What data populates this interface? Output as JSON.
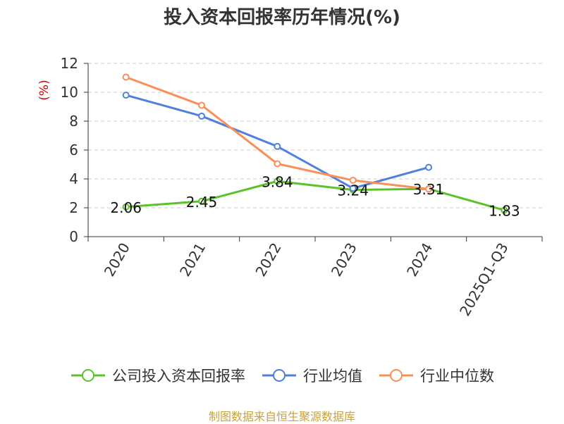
{
  "chart_data": {
    "type": "line",
    "title": "投入资本回报率历年情况(%)",
    "ylabel": "(%)",
    "xlabel": "",
    "categories": [
      "2020",
      "2021",
      "2022",
      "2023",
      "2024",
      "2025Q1-Q3"
    ],
    "ylim": [
      0,
      12
    ],
    "yticks": [
      0,
      2,
      4,
      6,
      8,
      10,
      12
    ],
    "grid": true,
    "legend_position": "bottom",
    "series": [
      {
        "name": "公司投入资本回报率",
        "color": "#5cc22a",
        "values": [
          2.06,
          2.45,
          3.84,
          3.24,
          3.31,
          1.83
        ],
        "labels": [
          "2.06",
          "2.45",
          "3.84",
          "3.24",
          "3.31",
          "1.83"
        ]
      },
      {
        "name": "行业均值",
        "color": "#4e80dc",
        "values": [
          9.8,
          8.35,
          6.25,
          3.35,
          4.8,
          null
        ]
      },
      {
        "name": "行业中位数",
        "color": "#fa8f58",
        "values": [
          11.05,
          9.1,
          5.05,
          3.9,
          3.3,
          null
        ]
      }
    ]
  },
  "source": "制图数据来自恒生聚源数据库"
}
